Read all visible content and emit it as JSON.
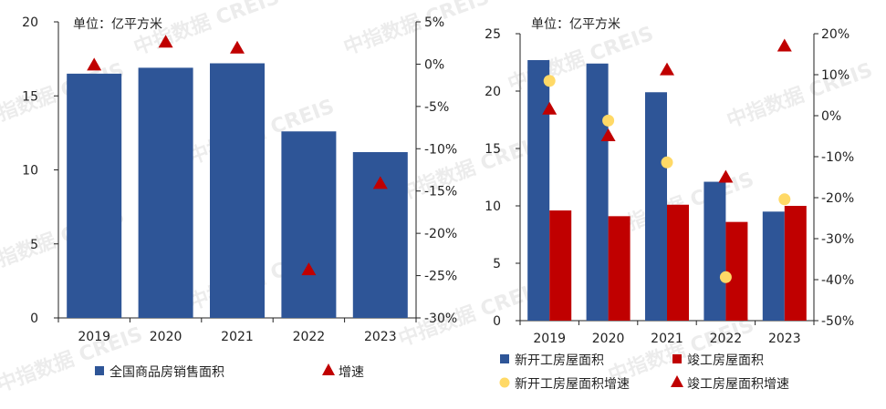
{
  "watermark": "中指数据 CREIS",
  "colors": {
    "blue": "#2e5597",
    "red": "#c00000",
    "yellow": "#ffd966",
    "axis": "#222222"
  },
  "chart_data": [
    {
      "type": "bar",
      "unit_label": "单位：亿平方米",
      "categories": [
        "2019",
        "2020",
        "2021",
        "2022",
        "2023"
      ],
      "series": [
        {
          "name": "全国商品房销售面积",
          "kind": "bar",
          "axis": "left",
          "color": "blue",
          "values": [
            16.5,
            16.9,
            17.2,
            12.6,
            11.2
          ]
        },
        {
          "name": "增速",
          "kind": "triangle",
          "axis": "right",
          "color": "red",
          "values": [
            -0.1,
            2.6,
            1.9,
            -24.3,
            -14.1
          ]
        }
      ],
      "ylim_left": [
        0,
        20
      ],
      "yticks_left": [
        "0",
        "5",
        "10",
        "15",
        "20"
      ],
      "ylim_right": [
        -30,
        5
      ],
      "yticks_right": [
        "-30%",
        "-25%",
        "-20%",
        "-15%",
        "-10%",
        "-5%",
        "0%",
        "5%"
      ],
      "legend": [
        {
          "label": "全国商品房销售面积",
          "marker": "square",
          "color": "blue"
        },
        {
          "label": "增速",
          "marker": "triangle",
          "color": "red"
        }
      ]
    },
    {
      "type": "bar",
      "unit_label": "单位：亿平方米",
      "categories": [
        "2019",
        "2020",
        "2021",
        "2022",
        "2023"
      ],
      "series": [
        {
          "name": "新开工房屋面积",
          "kind": "bar",
          "axis": "left",
          "color": "blue",
          "values": [
            22.7,
            22.4,
            19.9,
            12.1,
            9.5
          ]
        },
        {
          "name": "竣工房屋面积",
          "kind": "bar",
          "axis": "left",
          "color": "red",
          "values": [
            9.6,
            9.1,
            10.1,
            8.6,
            10.0
          ]
        },
        {
          "name": "新开工房屋面积增速",
          "kind": "circle",
          "axis": "right",
          "color": "yellow",
          "values": [
            8.5,
            -1.2,
            -11.4,
            -39.4,
            -20.4
          ]
        },
        {
          "name": "竣工房屋面积增速",
          "kind": "triangle",
          "axis": "right",
          "color": "red",
          "values": [
            1.6,
            -4.9,
            11.2,
            -15.0,
            17.0
          ]
        }
      ],
      "ylim_left": [
        0,
        25
      ],
      "yticks_left": [
        "0",
        "5",
        "10",
        "15",
        "20",
        "25"
      ],
      "ylim_right": [
        -50,
        20
      ],
      "yticks_right": [
        "-50%",
        "-40%",
        "-30%",
        "-20%",
        "-10%",
        "0%",
        "10%",
        "20%"
      ],
      "legend": [
        {
          "label": "新开工房屋面积",
          "marker": "square",
          "color": "blue"
        },
        {
          "label": "竣工房屋面积",
          "marker": "square",
          "color": "red"
        },
        {
          "label": "新开工房屋面积增速",
          "marker": "circle",
          "color": "yellow"
        },
        {
          "label": "竣工房屋面积增速",
          "marker": "triangle",
          "color": "red"
        }
      ]
    }
  ]
}
